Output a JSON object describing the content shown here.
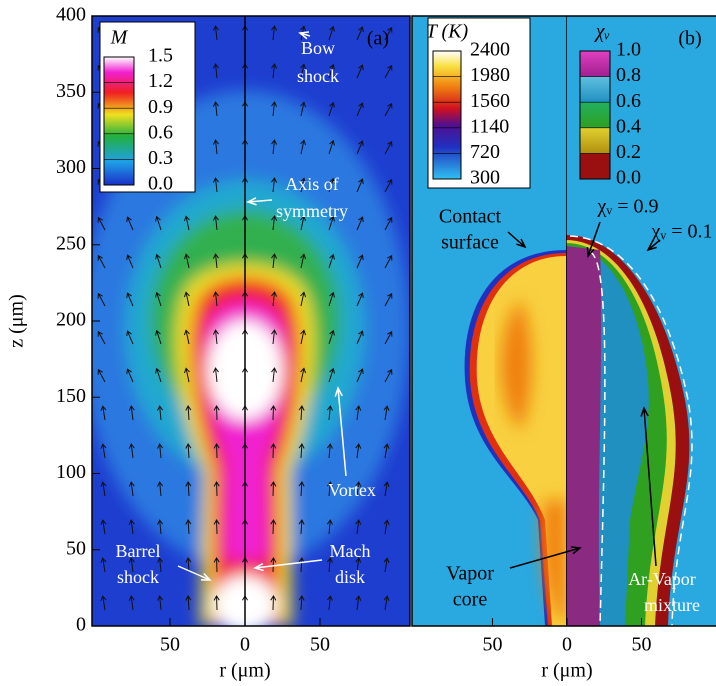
{
  "chart_data": [
    {
      "type": "contour",
      "label": "(a)",
      "xlabel": "r (μm)",
      "ylabel": "z (μm)",
      "xlim": [
        -102,
        110
      ],
      "ylim": [
        0,
        400
      ],
      "xticks": [
        {
          "value": -50,
          "label": "50"
        },
        0,
        {
          "value": 50,
          "label": "50"
        }
      ],
      "yticks": [
        0,
        50,
        100,
        150,
        200,
        250,
        300,
        350,
        400
      ],
      "colorbars": [
        {
          "title": "M",
          "clim": [
            0,
            1.5
          ],
          "ticks": [
            1.5,
            1.2,
            0.9,
            0.6,
            0.3,
            {
              "value": 0,
              "label": "0.0"
            }
          ]
        }
      ],
      "annotations": [
        {
          "lines": [
            "Bow",
            "shock"
          ]
        },
        {
          "lines": [
            "Axis of",
            "symmetry"
          ]
        },
        {
          "lines": [
            "Vortex"
          ]
        },
        {
          "lines": [
            "Barrel",
            "shock"
          ]
        },
        {
          "lines": [
            "Mach",
            "disk"
          ]
        }
      ]
    },
    {
      "type": "contour",
      "label": "(b)",
      "xlabel": "r (μm)",
      "xlim": [
        -104,
        100
      ],
      "ylim": [
        0,
        400
      ],
      "xticks": [
        {
          "value": -50,
          "label": "50"
        },
        0,
        {
          "value": 50,
          "label": "50"
        }
      ],
      "colorbars": [
        {
          "title": "T (K)",
          "clim": [
            300,
            2400
          ],
          "ticks": [
            2400,
            1980,
            1560,
            1140,
            720,
            300
          ]
        },
        {
          "title": "χᵥ",
          "clim": [
            0,
            1
          ],
          "ticks": [
            {
              "value": 1,
              "label": "1.0"
            },
            0.8,
            0.6,
            0.4,
            0.2,
            {
              "value": 0,
              "label": "0.0"
            }
          ]
        }
      ],
      "annotations": [
        {
          "lines": [
            "Contact",
            "surface"
          ]
        },
        {
          "lines": [
            "χᵥ = 0.9"
          ]
        },
        {
          "lines": [
            "χᵥ = 0.1"
          ]
        },
        {
          "lines": [
            "Vapor",
            "core"
          ]
        },
        {
          "lines": [
            "Ar-Vapor",
            "mixture"
          ]
        }
      ]
    }
  ]
}
